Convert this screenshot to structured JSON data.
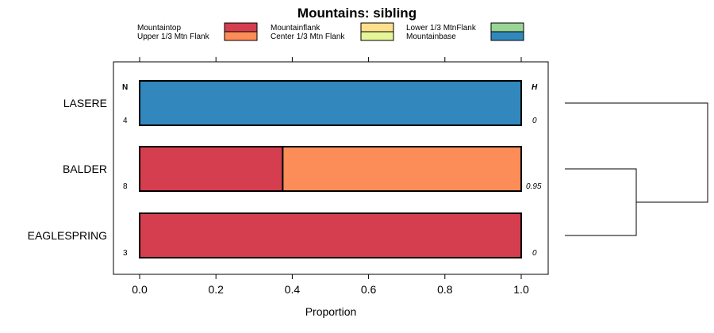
{
  "chart_data": {
    "type": "bar",
    "orientation": "horizontal",
    "stacked": true,
    "title": "Mountains: sibling",
    "xlabel": "Proportion",
    "ylabel": "",
    "xlim": [
      0,
      1
    ],
    "xticks": [
      "0.0",
      "0.2",
      "0.4",
      "0.6",
      "0.8",
      "1.0"
    ],
    "n_header": "N",
    "h_header": "H",
    "legend": [
      {
        "label": "Mountaintop",
        "color": "#d53e4f"
      },
      {
        "label": "Upper 1/3 Mtn Flank",
        "color": "#fc8d59"
      },
      {
        "label": "Mountainflank",
        "color": "#fee08b"
      },
      {
        "label": "Center 1/3 Mtn Flank",
        "color": "#e6f598"
      },
      {
        "label": "Lower 1/3 MtnFlank",
        "color": "#99d594"
      },
      {
        "label": "Mountainbase",
        "color": "#3288bd"
      }
    ],
    "categories": [
      "LASERE",
      "BALDER",
      "EAGLESPRING"
    ],
    "n": [
      "4",
      "8",
      "3"
    ],
    "h": [
      "0",
      "0.95",
      "0"
    ],
    "series": [
      {
        "name": "Mountaintop",
        "values": [
          0,
          0.375,
          1
        ]
      },
      {
        "name": "Upper 1/3 Mtn Flank",
        "values": [
          0,
          0.625,
          0
        ]
      },
      {
        "name": "Mountainflank",
        "values": [
          0,
          0,
          0
        ]
      },
      {
        "name": "Center 1/3 Mtn Flank",
        "values": [
          0,
          0,
          0
        ]
      },
      {
        "name": "Lower 1/3 MtnFlank",
        "values": [
          0,
          0,
          0
        ]
      },
      {
        "name": "Mountainbase",
        "values": [
          1,
          0,
          0
        ]
      }
    ],
    "dendrogram": {
      "merges": [
        {
          "left": "BALDER",
          "right": "EAGLESPRING",
          "height": 0.5
        },
        {
          "left": "LASERE",
          "right": "BALDER+EAGLESPRING",
          "height": 1.0
        }
      ]
    }
  }
}
